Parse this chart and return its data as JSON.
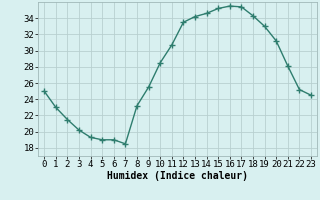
{
  "x": [
    0,
    1,
    2,
    3,
    4,
    5,
    6,
    7,
    8,
    9,
    10,
    11,
    12,
    13,
    14,
    15,
    16,
    17,
    18,
    19,
    20,
    21,
    22,
    23
  ],
  "y": [
    25,
    23,
    21.5,
    20.2,
    19.3,
    19.0,
    19.0,
    18.5,
    23.2,
    25.5,
    28.5,
    30.7,
    33.5,
    34.2,
    34.6,
    35.2,
    35.5,
    35.4,
    34.3,
    33.0,
    31.2,
    28.1,
    25.2,
    24.5
  ],
  "xlabel": "Humidex (Indice chaleur)",
  "line_color": "#2e7d6e",
  "marker": "+",
  "marker_size": 4,
  "marker_color": "#2e7d6e",
  "bg_color": "#d8f0f0",
  "grid_color": "#b8d0d0",
  "xlim": [
    -0.5,
    23.5
  ],
  "ylim": [
    17,
    36
  ],
  "yticks": [
    18,
    20,
    22,
    24,
    26,
    28,
    30,
    32,
    34
  ],
  "xticks": [
    0,
    1,
    2,
    3,
    4,
    5,
    6,
    7,
    8,
    9,
    10,
    11,
    12,
    13,
    14,
    15,
    16,
    17,
    18,
    19,
    20,
    21,
    22,
    23
  ],
  "xlabel_fontsize": 7,
  "tick_fontsize": 6.5,
  "line_width": 1.0
}
